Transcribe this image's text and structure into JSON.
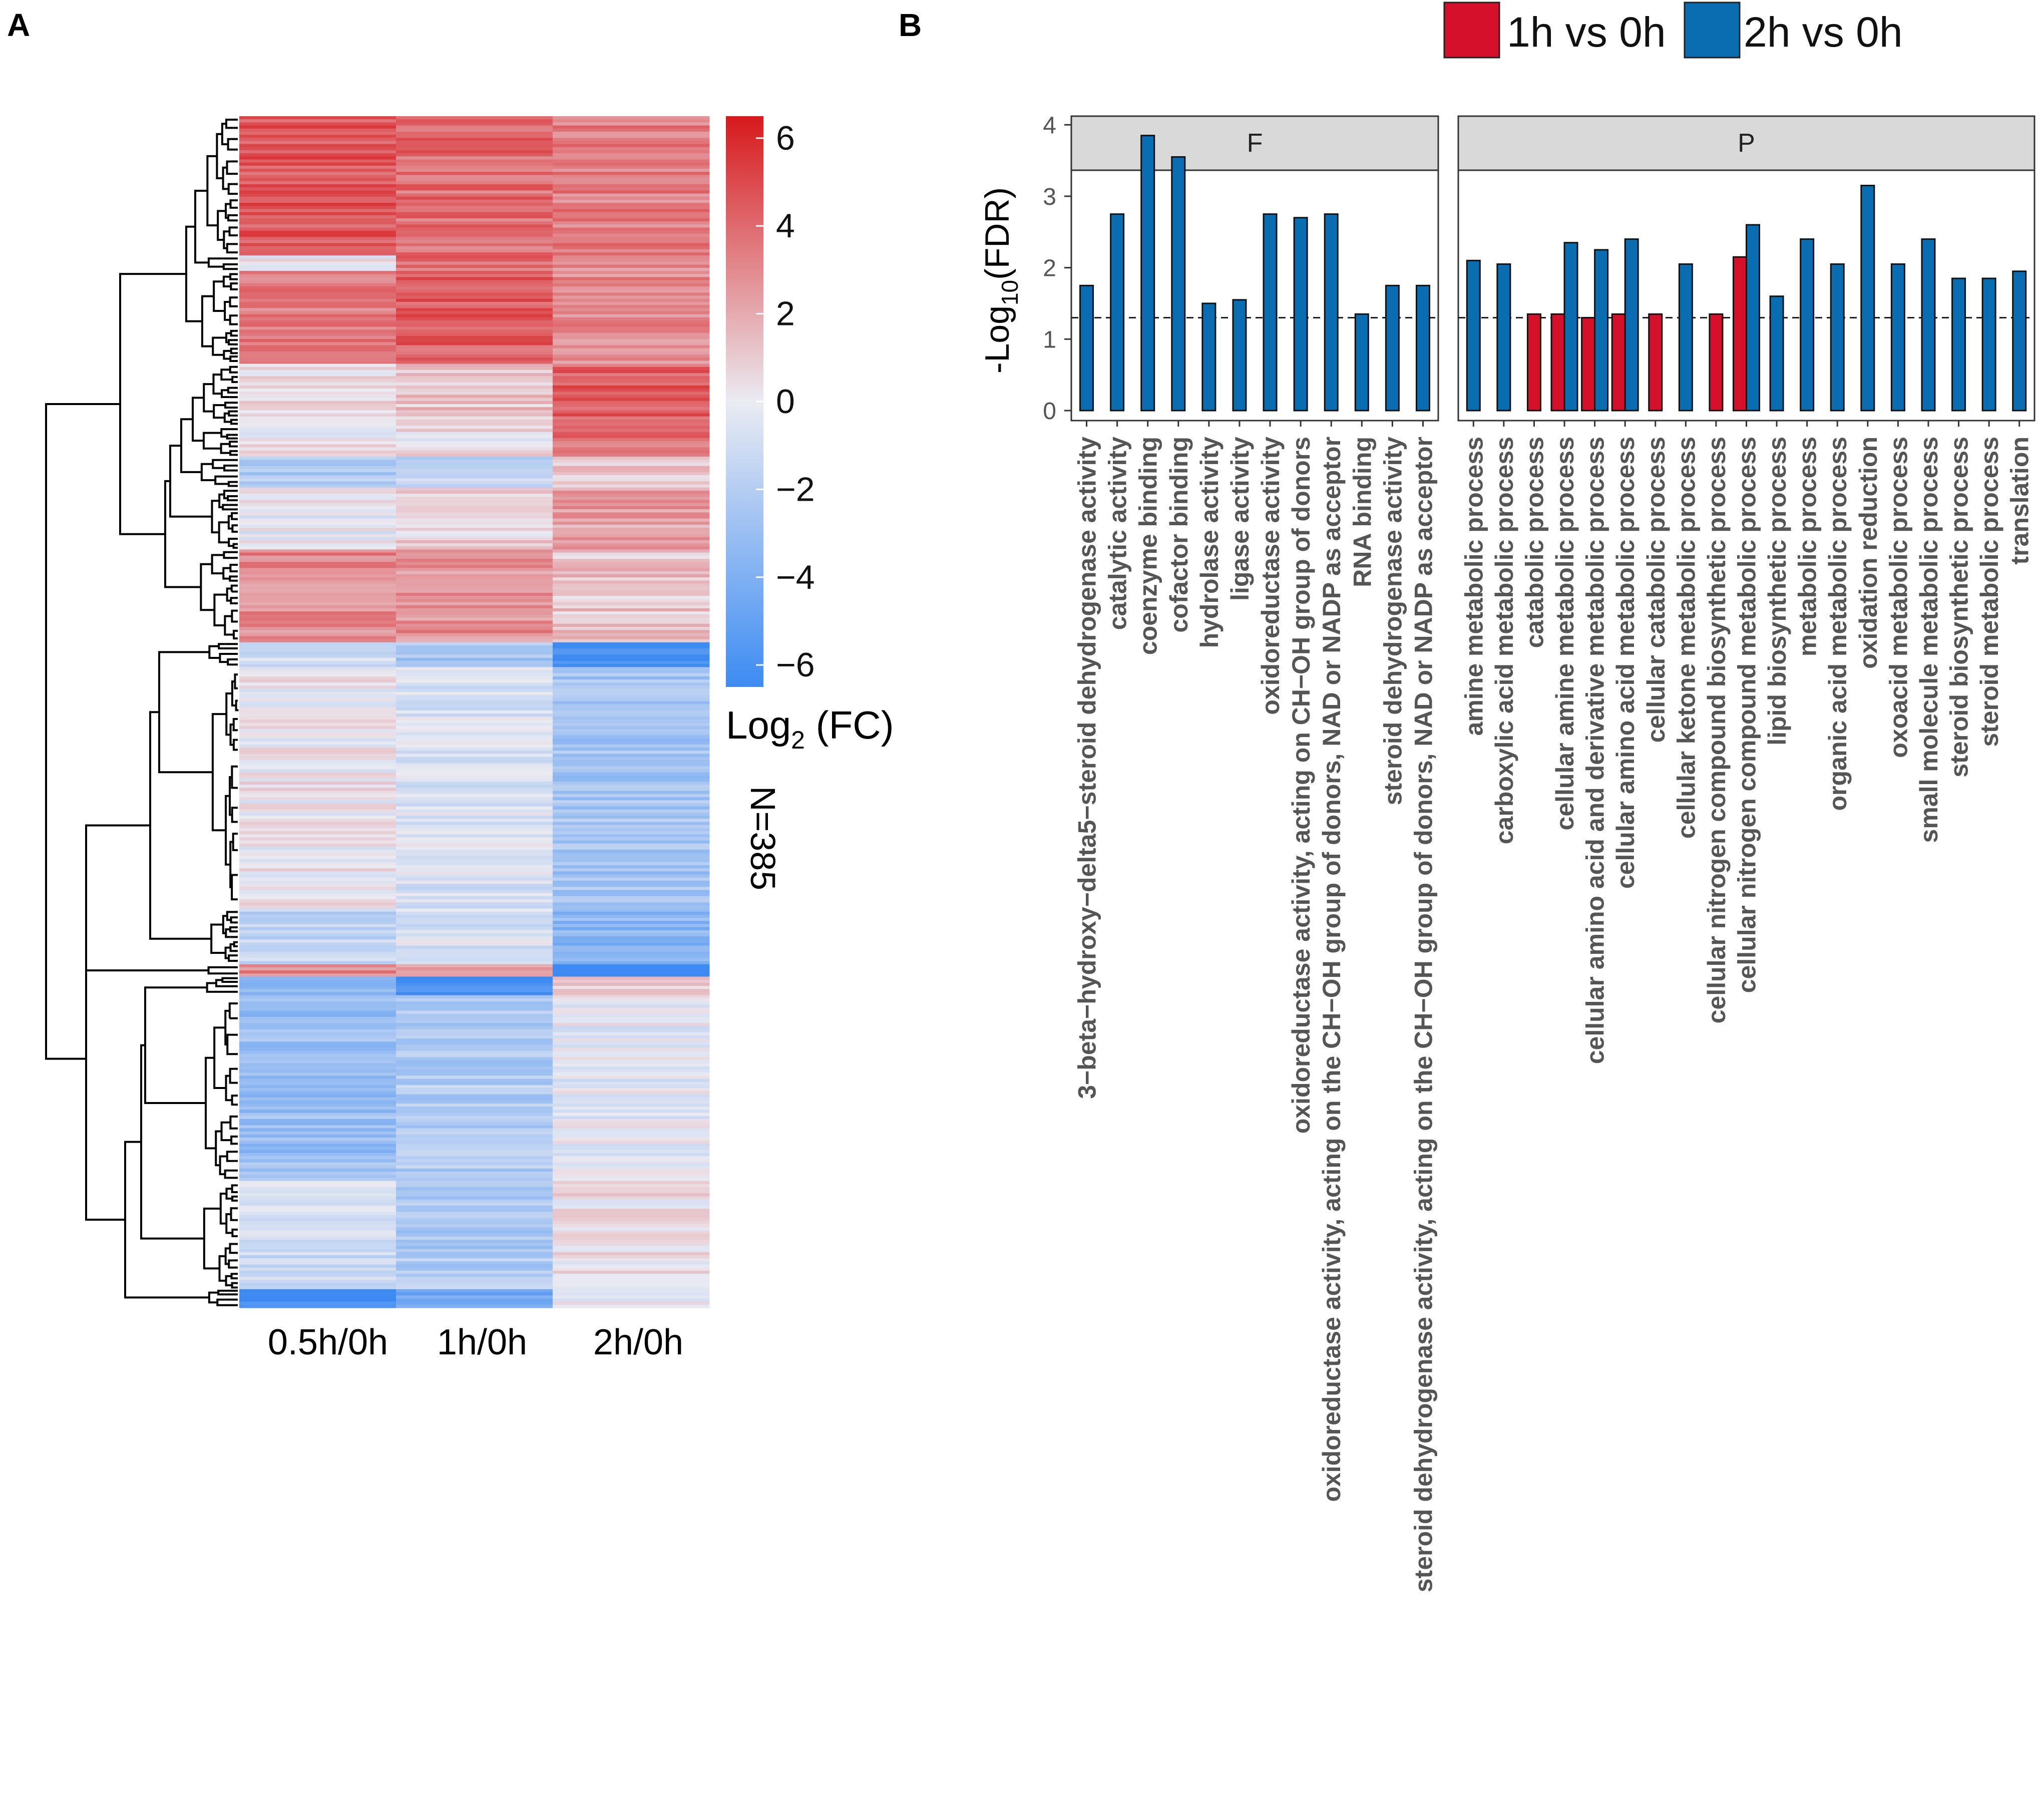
{
  "panel_a": {
    "label": "A",
    "columns": [
      "0.5h/0h",
      "1h/0h",
      "2h/0h"
    ],
    "colorbar": {
      "title_main": "Log",
      "title_sub": "2",
      "title_tail": " (FC)",
      "ticks": [
        "6",
        "4",
        "2",
        "0",
        "−2",
        "−4",
        "−6"
      ],
      "range": [
        -6.5,
        6.5
      ],
      "low_color": "#3d8bf2",
      "mid_color": "#ebebf2",
      "high_color": "#d7191c"
    },
    "n_label": "N=385"
  },
  "panel_b": {
    "label": "B",
    "legend": [
      {
        "label": "1h vs 0h",
        "color": "#d4102a"
      },
      {
        "label": "2h vs 0h",
        "color": "#0b6db1"
      }
    ],
    "y_label_main": "-Log",
    "y_label_sub": "10",
    "y_label_tail": "(FDR)",
    "y_ticks": [
      "0",
      "1",
      "2",
      "3",
      "4"
    ]
  },
  "chart_data": [
    {
      "type": "heatmap",
      "title": "",
      "columns": [
        "0.5h/0h",
        "1h/0h",
        "2h/0h"
      ],
      "n_genes": 385,
      "color_scale_label": "Log2 (FC)",
      "color_range": [
        -6.5,
        6.5
      ],
      "clusters": [
        {
          "rows": 45,
          "values": [
            4.6,
            3.9,
            3.3
          ]
        },
        {
          "rows": 5,
          "values": [
            0.2,
            3.8,
            3.0
          ]
        },
        {
          "rows": 30,
          "values": [
            3.6,
            4.3,
            2.9
          ]
        },
        {
          "rows": 20,
          "values": [
            0.6,
            1.2,
            4.3
          ]
        },
        {
          "rows": 10,
          "values": [
            0.3,
            0.4,
            3.7
          ]
        },
        {
          "rows": 10,
          "values": [
            -2.3,
            -1.4,
            1.0
          ]
        },
        {
          "rows": 20,
          "values": [
            -0.2,
            0.8,
            2.3
          ]
        },
        {
          "rows": 30,
          "values": [
            3.0,
            2.8,
            1.2
          ]
        },
        {
          "rows": 8,
          "values": [
            -0.8,
            -2.6,
            -6.5
          ]
        },
        {
          "rows": 78,
          "values": [
            0.1,
            -0.7,
            -2.6
          ]
        },
        {
          "rows": 18,
          "values": [
            -1.6,
            -0.6,
            -3.6
          ]
        },
        {
          "rows": 4,
          "values": [
            3.0,
            2.5,
            -6.5
          ]
        },
        {
          "rows": 6,
          "values": [
            -3.6,
            -6.5,
            1.0
          ]
        },
        {
          "rows": 60,
          "values": [
            -3.0,
            -2.1,
            -0.3
          ]
        },
        {
          "rows": 35,
          "values": [
            -1.0,
            -2.2,
            0.3
          ]
        },
        {
          "rows": 6,
          "values": [
            -6.5,
            -4.5,
            0.1
          ]
        }
      ]
    },
    {
      "type": "bar",
      "title": "F",
      "xlabel": "",
      "ylabel": "-Log10(FDR)",
      "ylim": [
        0,
        4.1
      ],
      "reference_line": 1.3,
      "categories": [
        "3−beta−hydroxy−delta5−steroid dehydrogenase activity",
        "catalytic activity",
        "coenzyme binding",
        "cofactor binding",
        "hydrolase activity",
        "ligase activity",
        "oxidoreductase activity",
        "oxidoreductase activity, acting on CH−OH group of donors",
        "oxidoreductase activity, acting on the CH−OH group of donors, NAD or NADP as acceptor",
        "RNA binding",
        "steroid dehydrogenase activity",
        "steroid dehydrogenase activity, acting on the CH−OH group of donors, NAD or NADP as acceptor"
      ],
      "series": [
        {
          "name": "1h vs 0h",
          "values": [
            null,
            null,
            null,
            null,
            null,
            null,
            null,
            null,
            null,
            null,
            null,
            null
          ]
        },
        {
          "name": "2h vs 0h",
          "values": [
            1.75,
            2.75,
            3.85,
            3.55,
            1.5,
            1.55,
            2.75,
            2.7,
            2.75,
            1.35,
            1.75,
            1.75
          ]
        }
      ]
    },
    {
      "type": "bar",
      "title": "P",
      "xlabel": "",
      "ylabel": "-Log10(FDR)",
      "ylim": [
        0,
        4.1
      ],
      "reference_line": 1.3,
      "categories": [
        "amine metabolic process",
        "carboxylic acid metabolic process",
        "catabolic process",
        "cellular amine metabolic process",
        "cellular amino acid and derivative metabolic process",
        "cellular amino acid metabolic process",
        "cellular catabolic process",
        "cellular ketone metabolic process",
        "cellular nitrogen compound biosynthetic process",
        "cellular nitrogen compound metabolic process",
        "lipid biosynthetic process",
        "metabolic process",
        "organic acid metabolic process",
        "oxidation reduction",
        "oxoacid metabolic process",
        "small molecule metabolic process",
        "steroid biosynthetic process",
        "steroid metabolic process",
        "translation"
      ],
      "series": [
        {
          "name": "1h vs 0h",
          "values": [
            null,
            null,
            1.35,
            1.35,
            1.3,
            1.35,
            1.35,
            null,
            1.35,
            2.15,
            null,
            null,
            null,
            null,
            null,
            null,
            null,
            null,
            null
          ]
        },
        {
          "name": "2h vs 0h",
          "values": [
            2.1,
            2.05,
            null,
            2.35,
            2.25,
            2.4,
            null,
            2.05,
            null,
            2.6,
            1.6,
            2.4,
            2.05,
            3.15,
            2.05,
            2.4,
            1.85,
            1.85,
            1.95
          ]
        }
      ]
    }
  ]
}
